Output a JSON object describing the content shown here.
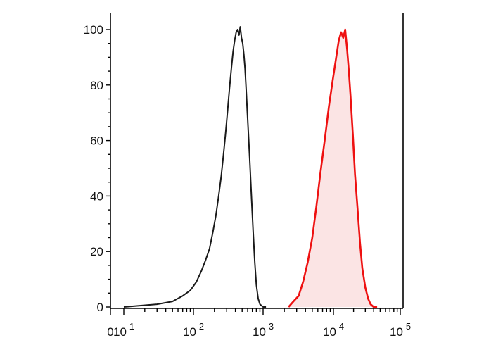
{
  "chart_data": {
    "type": "area",
    "title": "",
    "xlabel": "",
    "ylabel": "",
    "x_scale": "log",
    "xlim": [
      0,
      100000
    ],
    "ylim": [
      0,
      105
    ],
    "grid": false,
    "y_ticks": [
      0,
      20,
      40,
      60,
      80,
      100
    ],
    "y_tick_labels": [
      "0",
      "20",
      "40",
      "60",
      "80",
      "100"
    ],
    "x_ticks": [
      {
        "label": "0",
        "value": 0
      },
      {
        "base": "10",
        "exp": "1",
        "value": 10
      },
      {
        "base": "10",
        "exp": "2",
        "value": 100
      },
      {
        "base": "10",
        "exp": "3",
        "value": 1000
      },
      {
        "base": "10",
        "exp": "4",
        "value": 10000
      },
      {
        "base": "10",
        "exp": "5",
        "value": 100000
      }
    ],
    "series": [
      {
        "color": "#1a1a1a",
        "fill": "none",
        "x": [
          10,
          30,
          50,
          70,
          90,
          110,
          130,
          150,
          170,
          190,
          210,
          230,
          250,
          270,
          290,
          310,
          330,
          350,
          370,
          390,
          410,
          430,
          450,
          470,
          490,
          510,
          530,
          550,
          570,
          600,
          640,
          680,
          720,
          760,
          800,
          850,
          900,
          1000,
          1100
        ],
        "y": [
          0,
          1,
          2,
          4,
          6,
          9,
          13,
          17,
          21,
          27,
          33,
          40,
          47,
          55,
          63,
          71,
          79,
          86,
          92,
          96,
          99,
          100,
          98,
          101,
          97,
          95,
          91,
          86,
          79,
          68,
          54,
          40,
          27,
          16,
          8,
          3,
          1,
          0,
          0
        ]
      },
      {
        "color": "#ee1111",
        "fill": "#fbe4e4",
        "x": [
          2300,
          2700,
          3200,
          3700,
          4300,
          5000,
          5700,
          6500,
          7500,
          8600,
          9800,
          11000,
          12000,
          13000,
          14000,
          15000,
          16000,
          17000,
          18000,
          19500,
          21000,
          23000,
          25000,
          27000,
          30000,
          33000,
          36000,
          40000,
          45000
        ],
        "y": [
          0,
          2,
          4,
          9,
          16,
          25,
          36,
          48,
          60,
          72,
          82,
          90,
          96,
          99,
          97,
          100,
          93,
          85,
          76,
          62,
          48,
          35,
          23,
          14,
          7,
          3,
          1,
          0,
          0
        ]
      }
    ]
  }
}
